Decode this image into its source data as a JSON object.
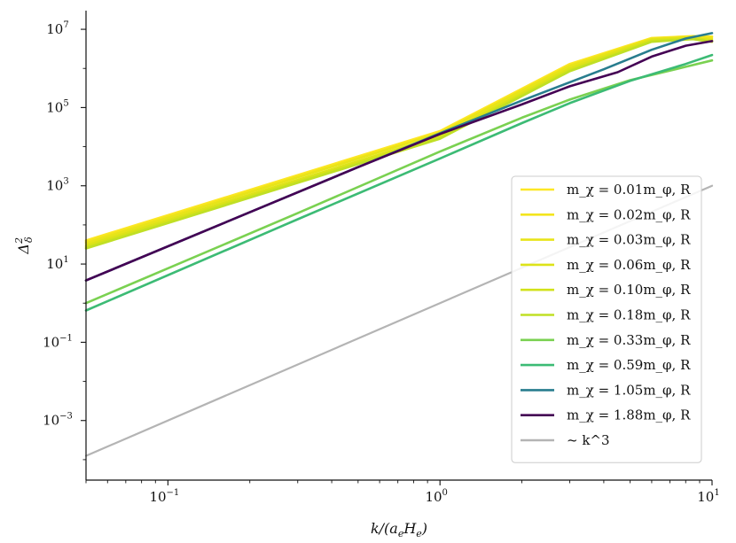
{
  "chart_data": {
    "type": "line",
    "xlabel": "k/(a_e H_e)",
    "ylabel": "Δ²_δ",
    "x_scale": "log",
    "y_scale": "log",
    "xlim": [
      0.05,
      10
    ],
    "ylim": [
      3e-05,
      30000000
    ],
    "x_ticks": [
      {
        "value": 0.1,
        "label": "10^-1"
      },
      {
        "value": 1,
        "label": "10^0"
      },
      {
        "value": 10,
        "label": "10^1"
      }
    ],
    "y_ticks": [
      {
        "value": 0.001,
        "label": "10^-3"
      },
      {
        "value": 0.1,
        "label": "10^-1"
      },
      {
        "value": 10,
        "label": "10^1"
      },
      {
        "value": 1000,
        "label": "10^3"
      },
      {
        "value": 100000,
        "label": "10^5"
      },
      {
        "value": 10000000,
        "label": "10^7"
      }
    ],
    "grid": false,
    "legend_position": "lower-right",
    "series": [
      {
        "name": "m_χ = 0.01m_φ, R",
        "color": "#fde725",
        "x": [
          0.05,
          1,
          3,
          6,
          8.5,
          10
        ],
        "values": [
          40,
          25000,
          1300000,
          6000000,
          6700000,
          6500000
        ]
      },
      {
        "name": "m_χ = 0.02m_φ, R",
        "color": "#f3e51e",
        "x": [
          0.05,
          1,
          3,
          6,
          8.5,
          10
        ],
        "values": [
          37,
          23000,
          1200000,
          5800000,
          6500000,
          6300000
        ]
      },
      {
        "name": "m_χ = 0.03m_φ, R",
        "color": "#e8e419",
        "x": [
          0.05,
          1,
          3,
          6,
          8.5,
          10
        ],
        "values": [
          34,
          22000,
          1150000,
          5600000,
          6200000,
          5700000
        ]
      },
      {
        "name": "m_χ = 0.06m_φ, R",
        "color": "#dde318",
        "x": [
          0.05,
          1,
          3,
          6,
          8.5,
          10
        ],
        "values": [
          30,
          19000,
          1000000,
          5400000,
          6000000,
          5200000
        ]
      },
      {
        "name": "m_χ = 0.10m_φ, R",
        "color": "#d2e21b",
        "x": [
          0.05,
          1,
          3,
          6,
          8.5,
          10
        ],
        "values": [
          27,
          17000,
          900000,
          5000000,
          5800000,
          5000000
        ]
      },
      {
        "name": "m_χ = 0.18m_φ, R",
        "color": "#c0df25",
        "x": [
          0.05,
          1,
          3,
          6,
          8.5,
          10
        ],
        "values": [
          25,
          16000,
          850000,
          4800000,
          5600000,
          4800000
        ]
      },
      {
        "name": "m_χ = 0.33m_φ, R",
        "color": "#7ad151",
        "x": [
          0.05,
          0.3,
          1,
          2,
          3,
          5,
          8,
          10
        ],
        "values": [
          1,
          200,
          7500,
          55000,
          160000,
          500000,
          1100000,
          1600000
        ]
      },
      {
        "name": "m_χ = 0.59m_φ, R",
        "color": "#3cbb75",
        "x": [
          0.05,
          0.3,
          1,
          2,
          3,
          5,
          8,
          10
        ],
        "values": [
          0.65,
          140,
          5000,
          40000,
          130000,
          480000,
          1300000,
          2200000
        ]
      },
      {
        "name": "m_χ = 1.05m_φ, R",
        "color": "#287d8e",
        "x": [
          0.05,
          0.5,
          1,
          2,
          4,
          6,
          8,
          10
        ],
        "values": [
          3.8,
          3000,
          22000,
          150000,
          950000,
          3000000,
          5800000,
          8000000
        ]
      },
      {
        "name": "m_χ = 1.88m_φ, R",
        "color": "#440154",
        "x": [
          0.05,
          0.5,
          1,
          2,
          3,
          4.5,
          6,
          8,
          10
        ],
        "values": [
          3.8,
          3000,
          21000,
          120000,
          350000,
          800000,
          2000000,
          3800000,
          5000000
        ]
      },
      {
        "name": "~ k^3",
        "color": "#b4b4b4",
        "x": [
          0.05,
          10
        ],
        "values": [
          0.000125,
          1000
        ]
      }
    ]
  }
}
